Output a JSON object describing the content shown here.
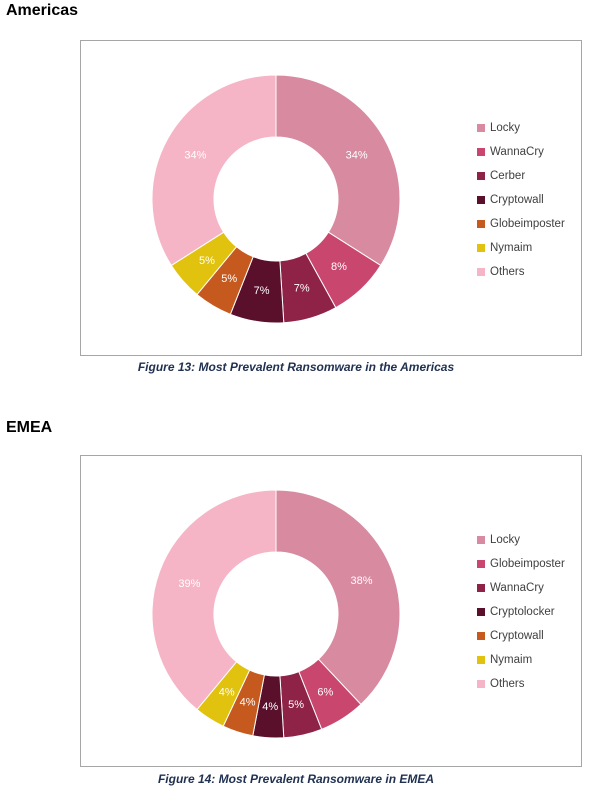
{
  "sections": [
    {
      "heading": "Americas",
      "caption": "Figure 13: Most Prevalent Ransomware in the Americas"
    },
    {
      "heading": "EMEA",
      "caption": "Figure 14: Most Prevalent Ransomware in EMEA"
    }
  ],
  "chart_data": [
    {
      "type": "pie",
      "donut": true,
      "legend_position": "right",
      "categories": [
        "Locky",
        "WannaCry",
        "Cerber",
        "Cryptowall",
        "Globeimposter",
        "Nymaim",
        "Others"
      ],
      "values": [
        34,
        8,
        7,
        7,
        5,
        5,
        34
      ],
      "data_labels": [
        "34%",
        "8%",
        "7%",
        "7%",
        "5%",
        "5%",
        "34%"
      ],
      "colors": [
        "#d88aa0",
        "#c9466f",
        "#8e2247",
        "#5a0f2b",
        "#c65a1e",
        "#e1c20f",
        "#f5b5c6"
      ]
    },
    {
      "type": "pie",
      "donut": true,
      "legend_position": "right",
      "categories": [
        "Locky",
        "Globeimposter",
        "WannaCry",
        "Cryptolocker",
        "Cryptowall",
        "Nymaim",
        "Others"
      ],
      "values": [
        38,
        6,
        5,
        4,
        4,
        4,
        39
      ],
      "data_labels": [
        "38%",
        "6%",
        "5%",
        "4%",
        "4%",
        "4%",
        "39%"
      ],
      "colors": [
        "#d88aa0",
        "#c9466f",
        "#8e2247",
        "#5a0f2b",
        "#c65a1e",
        "#e1c20f",
        "#f5b5c6"
      ]
    }
  ]
}
